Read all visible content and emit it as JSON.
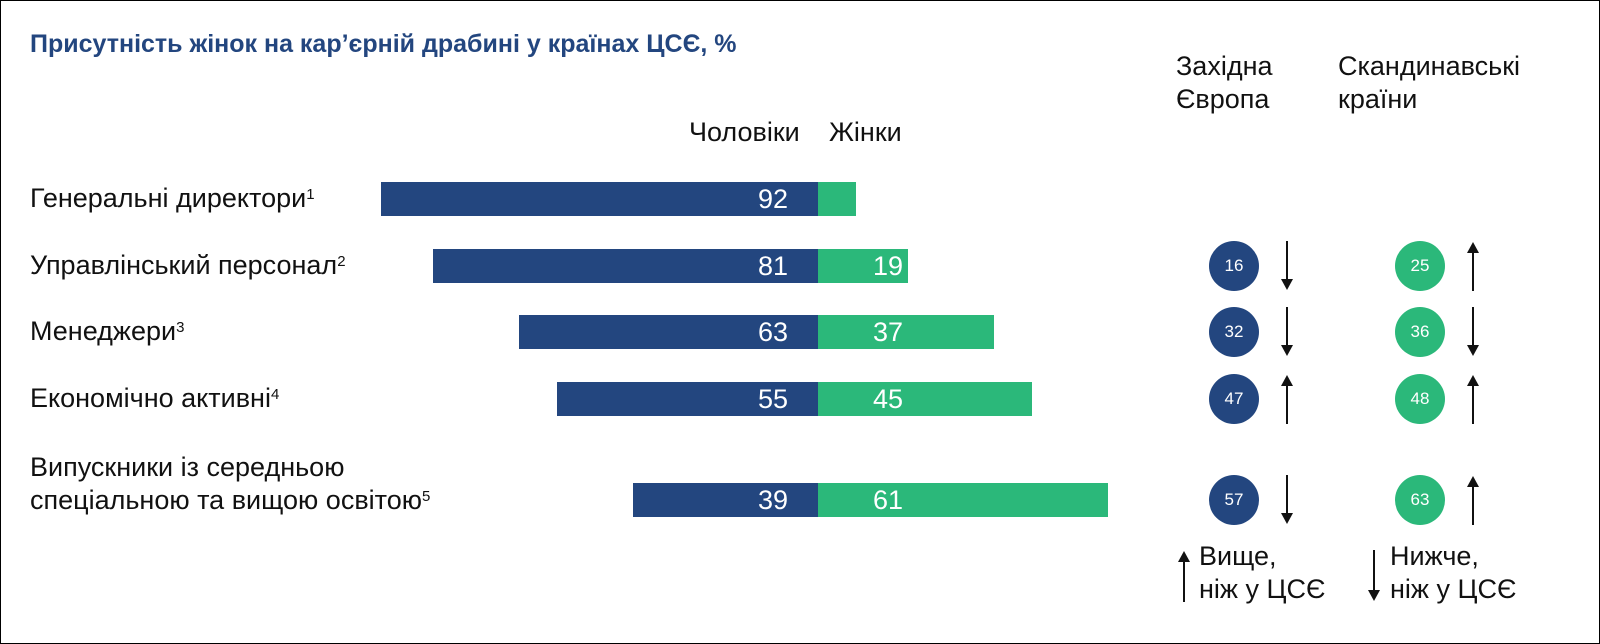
{
  "title": "Присутність жінок на кар’єрній драбині у країнах ЦСЄ, %",
  "colors": {
    "men": "#23467f",
    "women": "#2bb87a",
    "title": "#23467f"
  },
  "headers": {
    "men": "Чоловіки",
    "women": "Жінки",
    "west_line1": "Західна",
    "west_line2": "Європа",
    "scand_line1": "Скандинавські",
    "scand_line2": "країни"
  },
  "rows": [
    {
      "label": "Генеральні директори",
      "note": "1"
    },
    {
      "label": "Управлінський персонал",
      "note": "2"
    },
    {
      "label": "Менеджери",
      "note": "3"
    },
    {
      "label": "Економічно активні",
      "note": "4"
    },
    {
      "label_line1": "Випускники із середньою",
      "label_line2": "спеціальною та вищою освітою",
      "note": "5"
    }
  ],
  "legend": {
    "higher_line1": "Вище,",
    "higher_line2": "ніж у ЦСЄ",
    "lower_line1": "Нижче,",
    "lower_line2": "ніж у ЦСЄ"
  },
  "chart_data": {
    "type": "bar",
    "title": "Присутність жінок на кар’єрній драбині у країнах ЦСЄ, %",
    "categories": [
      "Генеральні директори",
      "Управлінський персонал",
      "Менеджери",
      "Економічно активні",
      "Випускники із середньою спеціальною та вищою освітою"
    ],
    "series": [
      {
        "name": "Чоловіки",
        "values": [
          92,
          81,
          63,
          55,
          39
        ]
      },
      {
        "name": "Жінки",
        "values": [
          8,
          19,
          37,
          45,
          61
        ]
      }
    ],
    "comparison": {
      "west": {
        "values": [
          null,
          16,
          32,
          47,
          57
        ],
        "direction": [
          null,
          "down",
          "down",
          "up",
          "down"
        ]
      },
      "scand": {
        "values": [
          null,
          25,
          36,
          48,
          63
        ],
        "direction": [
          null,
          "up",
          "down",
          "up",
          "up"
        ]
      }
    }
  }
}
